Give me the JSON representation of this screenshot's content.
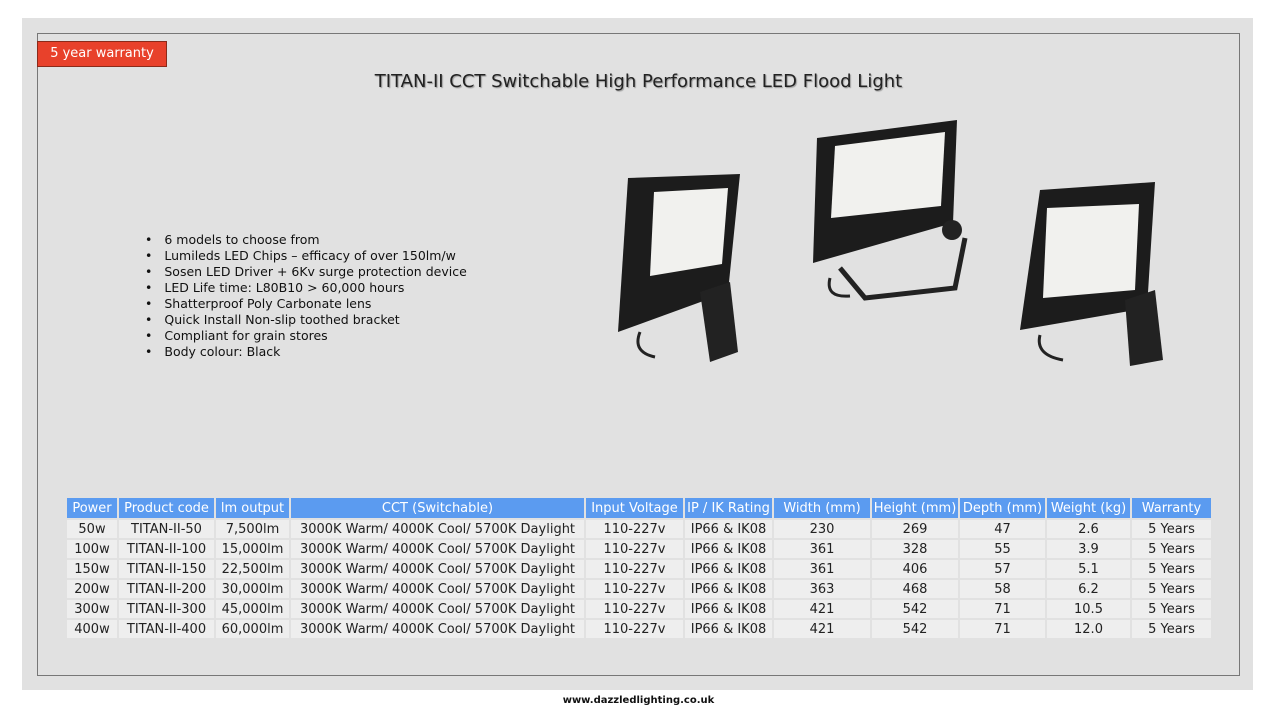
{
  "badge": "5 year warranty",
  "title": "TITAN-II CCT Switchable High Performance LED Flood Light",
  "features": [
    "6 models to choose from",
    "Lumileds LED Chips – efficacy of over 150lm/w",
    "Sosen LED Driver + 6Kv surge protection device",
    "LED Life time: L80B10 > 60,000 hours",
    "Shatterproof Poly Carbonate lens",
    "Quick Install Non-slip toothed bracket",
    "Compliant for grain stores",
    "Body colour: Black"
  ],
  "table": {
    "headers": [
      "Power",
      "Product code",
      "lm output",
      "CCT (Switchable)",
      "Input Voltage",
      "IP / IK Rating",
      "Width (mm)",
      "Height (mm)",
      "Depth (mm)",
      "Weight (kg)",
      "Warranty"
    ],
    "rows": [
      [
        "50w",
        "TITAN-II-50",
        "7,500lm",
        "3000K Warm/ 4000K Cool/ 5700K Daylight",
        "110-227v",
        "IP66 & IK08",
        "230",
        "269",
        "47",
        "2.6",
        "5 Years"
      ],
      [
        "100w",
        "TITAN-II-100",
        "15,000lm",
        "3000K Warm/ 4000K Cool/ 5700K Daylight",
        "110-227v",
        "IP66 & IK08",
        "361",
        "328",
        "55",
        "3.9",
        "5 Years"
      ],
      [
        "150w",
        "TITAN-II-150",
        "22,500lm",
        "3000K Warm/ 4000K Cool/ 5700K Daylight",
        "110-227v",
        "IP66 & IK08",
        "361",
        "406",
        "57",
        "5.1",
        "5 Years"
      ],
      [
        "200w",
        "TITAN-II-200",
        "30,000lm",
        "3000K Warm/ 4000K Cool/ 5700K Daylight",
        "110-227v",
        "IP66 & IK08",
        "363",
        "468",
        "58",
        "6.2",
        "5 Years"
      ],
      [
        "300w",
        "TITAN-II-300",
        "45,000lm",
        "3000K Warm/ 4000K Cool/ 5700K Daylight",
        "110-227v",
        "IP66 & IK08",
        "421",
        "542",
        "71",
        "10.5",
        "5 Years"
      ],
      [
        "400w",
        "TITAN-II-400",
        "60,000lm",
        "3000K Warm/ 4000K Cool/ 5700K Daylight",
        "110-227v",
        "IP66 & IK08",
        "421",
        "542",
        "71",
        "12.0",
        "5 Years"
      ]
    ]
  },
  "footer": "www.dazzledlighting.co.uk"
}
